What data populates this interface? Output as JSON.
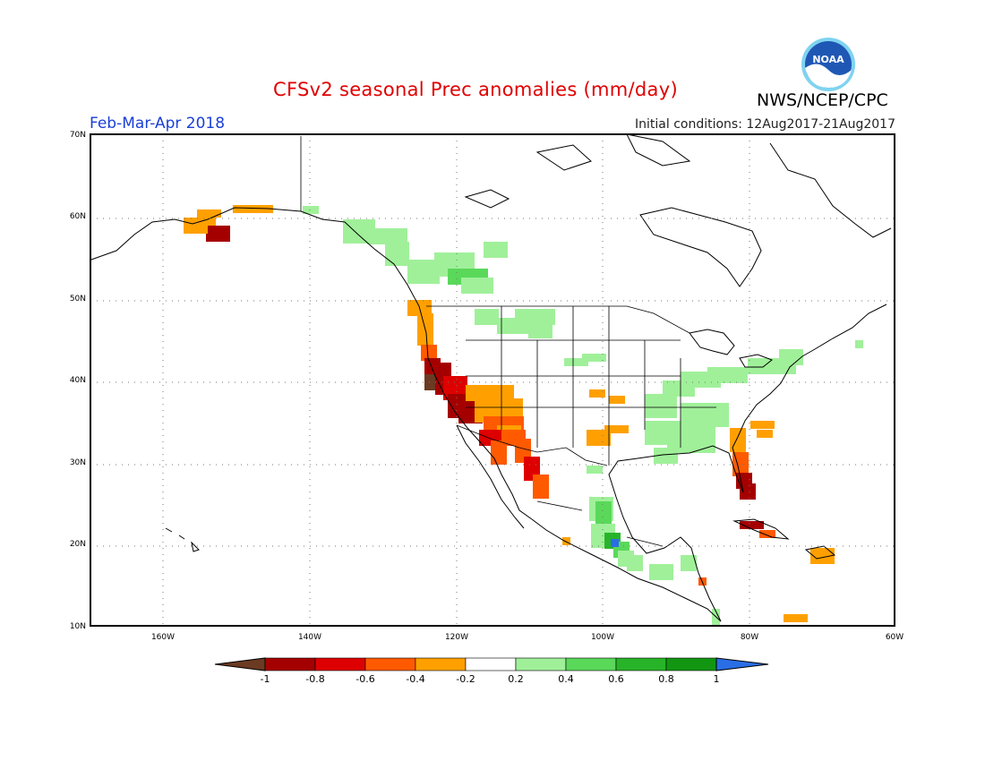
{
  "title": "CFSv2 seasonal Prec anomalies (mm/day)",
  "agency": "NWS/NCEP/CPC",
  "logo_text": "NOAA",
  "season": "Feb-Mar-Apr 2018",
  "initial_conditions": "Initial conditions: 12Aug2017-21Aug2017",
  "lat_labels": [
    "70N",
    "60N",
    "50N",
    "40N",
    "30N",
    "20N",
    "10N"
  ],
  "lon_labels": [
    "160W",
    "140W",
    "120W",
    "100W",
    "80W",
    "60W"
  ],
  "colorbar": {
    "labels": [
      "-1",
      "-0.8",
      "-0.6",
      "-0.4",
      "-0.2",
      "0.2",
      "0.4",
      "0.6",
      "0.8",
      "1"
    ],
    "colors": [
      "#6b3a22",
      "#a50000",
      "#de0000",
      "#ff5a00",
      "#ffa000",
      "#ffffff",
      "#a0f09a",
      "#5ad85a",
      "#28b428",
      "#129612",
      "#2a6ee6"
    ]
  },
  "colors": {
    "title": "#e00000",
    "season": "#1a3fd6",
    "map_line": "#000000",
    "grid": "#777777"
  }
}
